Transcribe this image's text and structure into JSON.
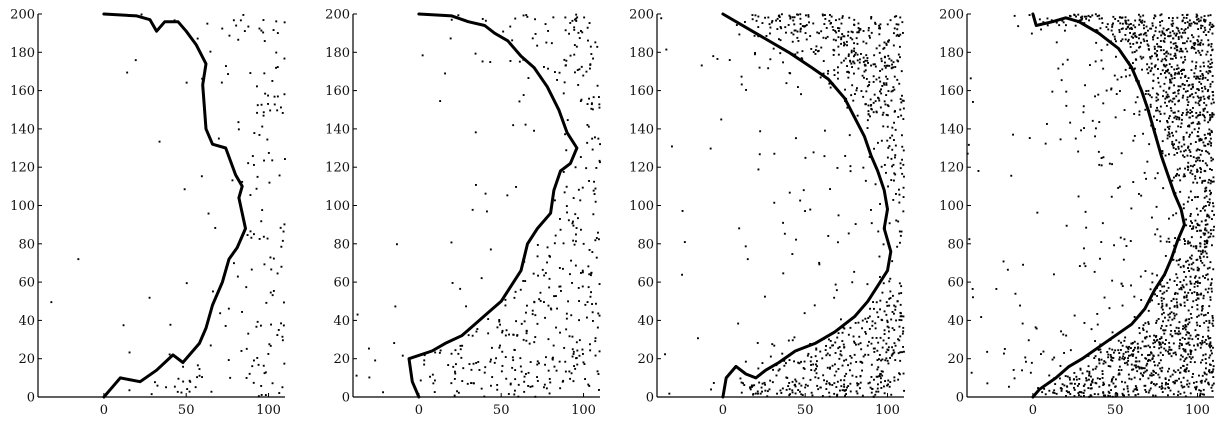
{
  "colors": {
    "ink": "#000000",
    "background": "#ffffff"
  },
  "chart_data": [
    {
      "type": "scatter",
      "xlim": [
        -40,
        110
      ],
      "ylim": [
        0,
        200
      ],
      "xticks": [
        "0",
        "50",
        "100"
      ],
      "yticks": [
        "0",
        "20",
        "40",
        "60",
        "80",
        "100",
        "120",
        "140",
        "160",
        "180",
        "200"
      ],
      "grid": false,
      "density": 0.35,
      "boundary": [
        [
          0,
          200
        ],
        [
          20,
          199
        ],
        [
          28,
          197
        ],
        [
          32,
          191
        ],
        [
          37,
          196
        ],
        [
          45,
          196
        ],
        [
          50,
          191
        ],
        [
          56,
          184
        ],
        [
          62,
          174
        ],
        [
          60,
          163
        ],
        [
          62,
          140
        ],
        [
          66,
          132
        ],
        [
          74,
          130
        ],
        [
          80,
          116
        ],
        [
          84,
          110
        ],
        [
          82,
          104
        ],
        [
          84,
          96
        ],
        [
          86,
          88
        ],
        [
          81,
          78
        ],
        [
          76,
          72
        ],
        [
          72,
          60
        ],
        [
          66,
          48
        ],
        [
          62,
          36
        ],
        [
          58,
          28
        ],
        [
          54,
          24
        ],
        [
          48,
          18
        ],
        [
          42,
          22
        ],
        [
          32,
          14
        ],
        [
          22,
          8
        ],
        [
          10,
          10
        ],
        [
          4,
          4
        ],
        [
          0,
          0
        ]
      ]
    },
    {
      "type": "scatter",
      "xlim": [
        -40,
        110
      ],
      "ylim": [
        0,
        200
      ],
      "xticks": [
        "0",
        "50",
        "100"
      ],
      "yticks": [
        "0",
        "20",
        "40",
        "60",
        "80",
        "100",
        "120",
        "140",
        "160",
        "180",
        "200"
      ],
      "grid": false,
      "density": 0.55,
      "boundary": [
        [
          0,
          200
        ],
        [
          20,
          199
        ],
        [
          30,
          196
        ],
        [
          40,
          194
        ],
        [
          46,
          190
        ],
        [
          54,
          186
        ],
        [
          62,
          178
        ],
        [
          70,
          172
        ],
        [
          78,
          162
        ],
        [
          85,
          150
        ],
        [
          90,
          138
        ],
        [
          96,
          130
        ],
        [
          92,
          122
        ],
        [
          86,
          118
        ],
        [
          82,
          108
        ],
        [
          80,
          96
        ],
        [
          72,
          88
        ],
        [
          66,
          80
        ],
        [
          62,
          66
        ],
        [
          56,
          58
        ],
        [
          50,
          50
        ],
        [
          42,
          44
        ],
        [
          34,
          38
        ],
        [
          26,
          32
        ],
        [
          16,
          28
        ],
        [
          8,
          24
        ],
        [
          -6,
          20
        ],
        [
          -4,
          8
        ],
        [
          0,
          0
        ]
      ]
    },
    {
      "type": "scatter",
      "xlim": [
        -40,
        110
      ],
      "ylim": [
        0,
        200
      ],
      "xticks": [
        "0",
        "50",
        "100"
      ],
      "yticks": [
        "0",
        "20",
        "40",
        "60",
        "80",
        "100",
        "120",
        "140",
        "160",
        "180",
        "200"
      ],
      "grid": false,
      "density": 0.85,
      "boundary": [
        [
          0,
          200
        ],
        [
          20,
          190
        ],
        [
          40,
          180
        ],
        [
          54,
          172
        ],
        [
          64,
          166
        ],
        [
          74,
          156
        ],
        [
          80,
          146
        ],
        [
          86,
          136
        ],
        [
          90,
          126
        ],
        [
          94,
          118
        ],
        [
          98,
          108
        ],
        [
          100,
          98
        ],
        [
          98,
          88
        ],
        [
          102,
          76
        ],
        [
          100,
          66
        ],
        [
          94,
          58
        ],
        [
          88,
          50
        ],
        [
          80,
          42
        ],
        [
          68,
          34
        ],
        [
          56,
          28
        ],
        [
          44,
          24
        ],
        [
          34,
          18
        ],
        [
          26,
          14
        ],
        [
          20,
          10
        ],
        [
          14,
          12
        ],
        [
          8,
          16
        ],
        [
          2,
          10
        ],
        [
          0,
          0
        ]
      ]
    },
    {
      "type": "scatter",
      "xlim": [
        -40,
        110
      ],
      "ylim": [
        0,
        200
      ],
      "xticks": [
        "0",
        "50",
        "100"
      ],
      "yticks": [
        "0",
        "20",
        "40",
        "60",
        "80",
        "100",
        "120",
        "140",
        "160",
        "180",
        "200"
      ],
      "grid": false,
      "density": 1.25,
      "boundary": [
        [
          0,
          200
        ],
        [
          2,
          194
        ],
        [
          12,
          196
        ],
        [
          20,
          198
        ],
        [
          28,
          196
        ],
        [
          40,
          190
        ],
        [
          52,
          182
        ],
        [
          60,
          172
        ],
        [
          66,
          160
        ],
        [
          70,
          150
        ],
        [
          74,
          138
        ],
        [
          78,
          126
        ],
        [
          82,
          116
        ],
        [
          86,
          106
        ],
        [
          90,
          98
        ],
        [
          92,
          90
        ],
        [
          88,
          82
        ],
        [
          84,
          72
        ],
        [
          80,
          64
        ],
        [
          74,
          56
        ],
        [
          68,
          46
        ],
        [
          60,
          38
        ],
        [
          50,
          32
        ],
        [
          40,
          26
        ],
        [
          30,
          20
        ],
        [
          22,
          16
        ],
        [
          14,
          10
        ],
        [
          4,
          4
        ],
        [
          0,
          0
        ]
      ]
    }
  ]
}
